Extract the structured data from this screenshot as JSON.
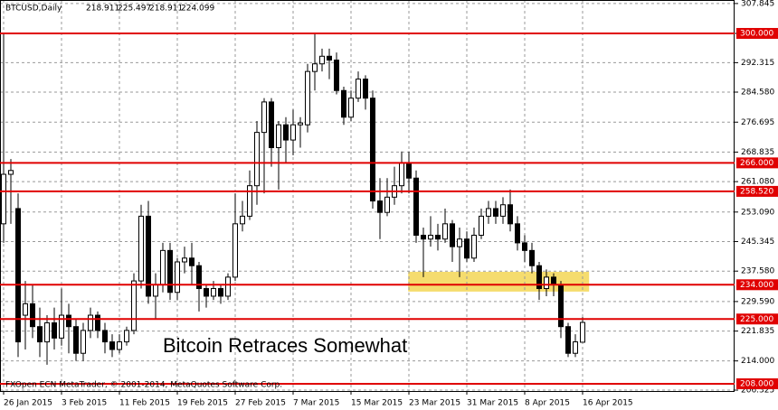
{
  "chart_data": {
    "type": "candlestick",
    "title": "BTCUSD,Daily",
    "annotation": "Bitcoin Retraces Somewhat",
    "footer": "FXOpen ECN MetaTrader, © 2001-2014, MetaQuotes Software Corp.",
    "categories": [
      "26 Jan 2015",
      null,
      null,
      null,
      null,
      null,
      null,
      null,
      "3 Feb 2015",
      null,
      null,
      null,
      null,
      null,
      null,
      null,
      "11 Feb 2015",
      null,
      null,
      null,
      null,
      null,
      null,
      null,
      "19 Feb 2015",
      null,
      null,
      null,
      null,
      null,
      null,
      null,
      "27 Feb 2015",
      null,
      null,
      null,
      null,
      null,
      null,
      null,
      "7 Mar 2015",
      null,
      null,
      null,
      null,
      null,
      null,
      null,
      "15 Mar 2015",
      null,
      null,
      null,
      null,
      null,
      null,
      null,
      "23 Mar 2015",
      null,
      null,
      null,
      null,
      null,
      null,
      null,
      "31 Mar 2015",
      null,
      null,
      null,
      null,
      null,
      null,
      null,
      "8 Apr 2015",
      null,
      null,
      null,
      null,
      null,
      null,
      null,
      "16 Apr 2015"
    ],
    "open": [
      250,
      263,
      254,
      226,
      229,
      223,
      219,
      224,
      220,
      226,
      223,
      216,
      222,
      226,
      222,
      219,
      217,
      219,
      222,
      235,
      252,
      231,
      234,
      243,
      232,
      240,
      241,
      239,
      233,
      231,
      233,
      231,
      236,
      250,
      252,
      260,
      274,
      282,
      270,
      276,
      272,
      276,
      276,
      290,
      292,
      294,
      293,
      285,
      278,
      283,
      288,
      283,
      256,
      253,
      257,
      260,
      266,
      262,
      247,
      246,
      247,
      246,
      250,
      244,
      246,
      241,
      247,
      252,
      254,
      252,
      255,
      250,
      245,
      243,
      239,
      233,
      236,
      234,
      223,
      216,
      218.911
    ],
    "high": [
      300,
      267,
      258,
      235,
      234,
      228,
      226,
      228,
      233,
      229,
      225,
      224,
      228,
      227,
      224,
      221,
      221,
      223,
      237,
      255,
      256,
      237,
      245,
      245,
      241,
      244,
      245,
      240,
      234,
      235,
      234,
      237,
      258,
      256,
      264,
      277,
      283,
      283,
      277,
      278,
      280,
      278,
      292,
      300,
      296,
      296,
      295,
      286,
      285,
      290,
      289,
      285,
      262,
      262,
      265,
      269,
      269,
      264,
      249,
      252,
      250,
      254,
      251,
      249,
      248,
      249,
      254,
      256,
      256,
      257,
      259,
      252,
      247,
      245,
      240,
      238,
      237,
      235,
      224,
      221,
      225.497
    ],
    "low": [
      245,
      250,
      215,
      217,
      220,
      215,
      213,
      217,
      218,
      216,
      214,
      214,
      220,
      220,
      216,
      215,
      216,
      218,
      221,
      233,
      229,
      225,
      232,
      230,
      230,
      237,
      234,
      227,
      228,
      230,
      229,
      230,
      235,
      248,
      251,
      255,
      258,
      265,
      259,
      266,
      268,
      270,
      274,
      285,
      290,
      288,
      284,
      276,
      277,
      282,
      280,
      254,
      246,
      252,
      255,
      258,
      258,
      245,
      236,
      244,
      243,
      245,
      240,
      236,
      240,
      240,
      246,
      250,
      250,
      250,
      248,
      243,
      240,
      237,
      230,
      231,
      231,
      220,
      215,
      215,
      218.911
    ],
    "close": [
      263,
      264,
      219,
      229,
      223,
      219,
      224,
      220,
      226,
      223,
      216,
      222,
      226,
      222,
      219,
      217,
      219,
      222,
      235,
      252,
      231,
      234,
      243,
      232,
      240,
      241,
      239,
      233,
      231,
      233,
      231,
      236,
      250,
      252,
      260,
      274,
      282,
      270,
      276,
      272,
      276,
      276.5,
      290,
      292,
      294,
      293,
      285,
      278,
      283,
      288,
      283,
      256,
      253,
      257,
      260,
      266,
      262,
      247,
      246,
      247,
      246,
      250,
      244,
      246,
      241,
      247,
      252,
      254,
      252,
      255,
      250,
      245,
      243,
      239,
      233,
      236,
      234,
      223,
      216,
      219,
      224.099
    ],
    "ylim": [
      206.09,
      308.77
    ],
    "yticks": [
      307.845,
      {
        "value": 300,
        "label": "300.000"
      },
      292.315,
      {
        "value": 284.58,
        "label": "284.580"
      },
      276.695,
      268.835,
      {
        "value": 261.08,
        "label": "261.080"
      },
      {
        "value": 253.09,
        "label": "253.090"
      },
      245.345,
      {
        "value": 237.58,
        "label": "237.580"
      },
      {
        "value": 229.59,
        "label": "229.590"
      },
      221.835,
      {
        "value": 214,
        "label": "214.000"
      },
      206.325
    ],
    "levels": [
      {
        "value": 300,
        "label": "300.000"
      },
      {
        "value": 266,
        "label": "266.000"
      },
      {
        "value": 258.52,
        "label": "258.520"
      },
      {
        "value": 234,
        "label": "234.000"
      },
      {
        "value": 225,
        "label": "225.000"
      },
      {
        "value": 208,
        "label": "208.000"
      }
    ],
    "level_color": "#e00000",
    "zone": {
      "x": [
        55.9,
        80.9
      ],
      "y": [
        232.2,
        237.4
      ],
      "color": "#f5dc6e"
    },
    "up_color": "#ffffff",
    "down_color": "#000000",
    "grid": true
  }
}
